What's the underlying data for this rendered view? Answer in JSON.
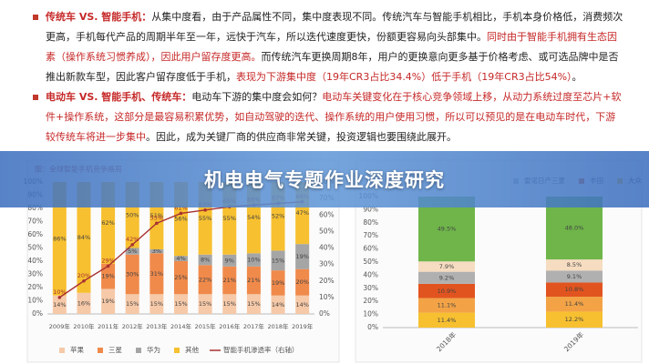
{
  "document": {
    "paragraphs": [
      {
        "runs": [
          "传统车 VS. 智能手机：",
          "从集中度看，由于产品属性不同，集中度表现不同。传统汽车与智能手机相比，手机本身价格低，消费频次更高，手机每代产品的周期半年至一年，远快于汽车，所以迭代速度更快，份额更容易向头部集中。",
          "同时由于智能手机拥有生态因素（操作系统习惯养成），因此用户留存度更高。",
          "而传统汽车更换周期8年，用户的更换意向更多基于价格考虑、或可选品牌中是否推出新款车型，因此客户留存度低于手机，",
          "表现为下游集中度（19年CR3占比34.4%）低于手机（19年CR3占比54%）",
          "。"
        ]
      },
      {
        "runs": [
          "电动车 VS. 智能手机、传统车：",
          "电动车下游的集中度会如何？",
          "电动车关键变化在于核心竞争领域上移，从动力系统过度至芯片+软件+操作系统，这部分是最容易积累优势，如自动驾驶的迭代、操作系统的用户使用习惯，所以可以预见的是在电动车时代，下游较传统车将进一步集中",
          "。因此，成为关键厂商的供应商非常关键，投资逻辑也要围绕此展开。"
        ]
      }
    ]
  },
  "banner": {
    "title": "机电电气专题作业深度研究"
  },
  "chart_data": [
    {
      "type": "bar",
      "stacked": true,
      "title": "图：全球智能手机竞争格局",
      "categories": [
        "2009年",
        "2010年",
        "2011年",
        "2012年",
        "2013年",
        "2014年",
        "2015年",
        "2016年",
        "2017年",
        "2018年",
        "2019年"
      ],
      "series": [
        {
          "name": "苹果",
          "color": "#f6c9a8",
          "values": [
            14,
            16,
            19,
            15,
            15,
            15,
            15,
            15,
            15,
            14,
            14
          ],
          "value_labels": [
            "14%",
            "16%",
            "19%",
            "15%",
            "15%",
            "15%",
            "15%",
            "15%",
            "15%",
            "14%",
            "14%"
          ]
        },
        {
          "name": "三星",
          "color": "#f08a4b",
          "values": [
            0,
            0,
            19,
            30,
            31,
            25,
            22,
            21,
            21,
            19,
            20
          ],
          "value_labels": [
            null,
            null,
            "19%",
            "30%",
            "31%",
            "25%",
            "22%",
            "21%",
            "21%",
            "19%",
            "20%"
          ]
        },
        {
          "name": "华为",
          "color": "#a5a5a5",
          "values": [
            0,
            0,
            0,
            5,
            3,
            4,
            8,
            9,
            10,
            15,
            19
          ],
          "value_labels": [
            null,
            null,
            null,
            "5%",
            "3%",
            "4%",
            "8%",
            "9%",
            "10%",
            "15%",
            "19%"
          ]
        },
        {
          "name": "其他",
          "color": "#f7c030",
          "values": [
            86,
            84,
            62,
            50,
            51,
            56,
            55,
            55,
            54,
            52,
            47
          ],
          "value_labels": [
            "86%",
            "84%",
            "62%",
            "50%",
            "51%",
            "56%",
            "55%",
            "55%",
            "54%",
            "52%",
            "47%"
          ]
        },
        {
          "name": "智能手机渗透率（右轴）",
          "type": "line",
          "axis": "y2",
          "color": "#a83232",
          "values": [
            10,
            20,
            29,
            42,
            55,
            61,
            63,
            65,
            66,
            67,
            68
          ],
          "value_labels": [
            "10%",
            "20%",
            "29%",
            "42%",
            "55%",
            "61%",
            "63%",
            "65%",
            "66%",
            "67%",
            "68%"
          ]
        }
      ],
      "ylim": [
        0,
        100
      ],
      "yticks": [
        {
          "value": 0,
          "label": "0%"
        },
        {
          "value": 10,
          "label": "10%"
        },
        {
          "value": 20,
          "label": "20%"
        },
        {
          "value": 30,
          "label": "30%"
        },
        {
          "value": 40,
          "label": "40%"
        },
        {
          "value": 50,
          "label": "50%"
        },
        {
          "value": 60,
          "label": "60%"
        },
        {
          "value": 70,
          "label": "70%"
        },
        {
          "value": 80,
          "label": "80%"
        },
        {
          "value": 90,
          "label": "90%"
        },
        {
          "value": 100,
          "label": "100%"
        }
      ],
      "y2lim": [
        0,
        80
      ],
      "y2ticks": [
        {
          "value": 0,
          "label": "0%"
        },
        {
          "value": 10,
          "label": "10%"
        },
        {
          "value": 20,
          "label": "20%"
        },
        {
          "value": 30,
          "label": "30%"
        },
        {
          "value": 40,
          "label": "40%"
        },
        {
          "value": 50,
          "label": "50%"
        },
        {
          "value": 60,
          "label": "60%"
        },
        {
          "value": 70,
          "label": "70%"
        },
        {
          "value": 80,
          "label": "80%"
        }
      ],
      "legend": "bottom"
    },
    {
      "type": "bar",
      "stacked": true,
      "categories": [
        "2018年",
        "2019年"
      ],
      "series": [
        {
          "name": "大众",
          "color": "#f7c030",
          "values": [
            11.4,
            12.2
          ],
          "value_labels": [
            "11.4%",
            "12.2%"
          ]
        },
        {
          "color": "#f3a346",
          "values": [
            11.1,
            11.4
          ],
          "value_labels": [
            "11.1%",
            "11.4%"
          ]
        },
        {
          "name": "丰田",
          "color": "#e2541f",
          "values": [
            10.9,
            10.8
          ],
          "value_labels": [
            "10.9%",
            "10.8%"
          ]
        },
        {
          "name": "雷诺日产三菱",
          "color": "#b0b0b0",
          "values": [
            9.2,
            9.1
          ],
          "value_labels": [
            "9.2%",
            "9.1%"
          ]
        },
        {
          "color": "#f6dcc0",
          "values": [
            7.9,
            8.5
          ],
          "value_labels": [
            "7.9%",
            "8.5%"
          ]
        },
        {
          "color": "#6fb54a",
          "values": [
            49.5,
            48.0
          ],
          "value_labels": [
            "49.5%",
            "48.0%"
          ]
        }
      ],
      "ylim": [
        0,
        100
      ],
      "yticks": [
        {
          "value": 0,
          "label": "0%"
        },
        {
          "value": 10,
          "label": "10%"
        },
        {
          "value": 20,
          "label": "20%"
        },
        {
          "value": 30,
          "label": "30%"
        },
        {
          "value": 40,
          "label": "40%"
        },
        {
          "value": 50,
          "label": "50%"
        },
        {
          "value": 60,
          "label": "60%"
        },
        {
          "value": 70,
          "label": "70%"
        },
        {
          "value": 80,
          "label": "80%"
        },
        {
          "value": 90,
          "label": "90%"
        },
        {
          "value": 100,
          "label": "100%"
        }
      ],
      "legend": "top"
    }
  ]
}
